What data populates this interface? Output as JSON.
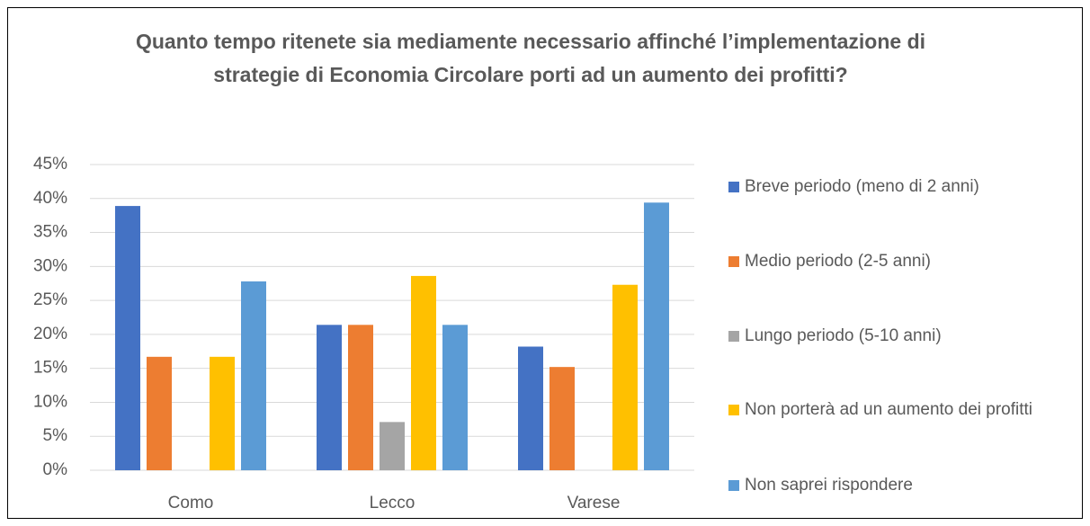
{
  "chart_data": {
    "type": "bar",
    "title": "Quanto tempo ritenete sia mediamente necessario affinché l’implementazione di strategie di Economia Circolare porti ad un aumento dei profitti?",
    "categories": [
      "Como",
      "Lecco",
      "Varese"
    ],
    "series": [
      {
        "name": "Breve periodo (meno di 2 anni)",
        "color": "#4472c4",
        "values": [
          38.9,
          21.4,
          18.2
        ]
      },
      {
        "name": "Medio periodo (2-5 anni)",
        "color": "#ed7d31",
        "values": [
          16.7,
          21.4,
          15.2
        ]
      },
      {
        "name": "Lungo periodo (5-10 anni)",
        "color": "#a5a5a5",
        "values": [
          0,
          7.1,
          0
        ]
      },
      {
        "name": "Non porterà ad un aumento dei profitti",
        "color": "#ffc000",
        "values": [
          16.7,
          28.6,
          27.3
        ]
      },
      {
        "name": "Non saprei rispondere",
        "color": "#5b9bd5",
        "values": [
          27.8,
          21.4,
          39.4
        ]
      }
    ],
    "ylim": [
      0,
      45
    ],
    "yticks": [
      {
        "value": 0,
        "label": "0%"
      },
      {
        "value": 5,
        "label": "5%"
      },
      {
        "value": 10,
        "label": "10%"
      },
      {
        "value": 15,
        "label": "15%"
      },
      {
        "value": 20,
        "label": "20%"
      },
      {
        "value": 25,
        "label": "25%"
      },
      {
        "value": 30,
        "label": "30%"
      },
      {
        "value": 35,
        "label": "35%"
      },
      {
        "value": 40,
        "label": "40%"
      },
      {
        "value": 45,
        "label": "45%"
      }
    ],
    "grid": true,
    "legend": "right"
  }
}
